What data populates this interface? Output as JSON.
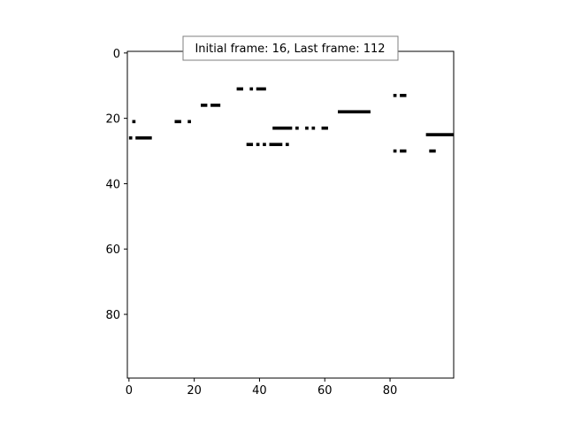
{
  "chart_data": {
    "type": "scatter",
    "title": "",
    "xlabel": "",
    "ylabel": "",
    "xlim": [
      0,
      100
    ],
    "ylim": [
      100,
      0
    ],
    "y_inverted": true,
    "x_ticks": [
      0,
      20,
      40,
      60,
      80
    ],
    "y_ticks": [
      0,
      20,
      40,
      60,
      80
    ],
    "grid": false,
    "annotation": "Initial frame: 16, Last frame: 112",
    "annotation_placement": "top-center",
    "mark_color": "#000000",
    "segments": [
      {
        "y": 11,
        "x": [
          33,
          35
        ]
      },
      {
        "y": 11,
        "x": [
          37,
          38
        ]
      },
      {
        "y": 11,
        "x": [
          39,
          42
        ]
      },
      {
        "y": 13,
        "x": [
          81,
          82
        ]
      },
      {
        "y": 13,
        "x": [
          83,
          85
        ]
      },
      {
        "y": 16,
        "x": [
          22,
          24
        ]
      },
      {
        "y": 16,
        "x": [
          25,
          28
        ]
      },
      {
        "y": 18,
        "x": [
          64,
          74
        ]
      },
      {
        "y": 21,
        "x": [
          1,
          2
        ]
      },
      {
        "y": 21,
        "x": [
          14,
          16
        ]
      },
      {
        "y": 21,
        "x": [
          18,
          19
        ]
      },
      {
        "y": 23,
        "x": [
          44,
          50
        ]
      },
      {
        "y": 23,
        "x": [
          51,
          52
        ]
      },
      {
        "y": 23,
        "x": [
          54,
          55
        ]
      },
      {
        "y": 23,
        "x": [
          56,
          57
        ]
      },
      {
        "y": 23,
        "x": [
          59,
          61
        ]
      },
      {
        "y": 25,
        "x": [
          91,
          100
        ]
      },
      {
        "y": 26,
        "x": [
          0,
          1
        ]
      },
      {
        "y": 26,
        "x": [
          2,
          7
        ]
      },
      {
        "y": 28,
        "x": [
          36,
          38
        ]
      },
      {
        "y": 28,
        "x": [
          39,
          40
        ]
      },
      {
        "y": 28,
        "x": [
          41,
          42
        ]
      },
      {
        "y": 28,
        "x": [
          43,
          47
        ]
      },
      {
        "y": 28,
        "x": [
          48,
          49
        ]
      },
      {
        "y": 30,
        "x": [
          81,
          82
        ]
      },
      {
        "y": 30,
        "x": [
          83,
          85
        ]
      },
      {
        "y": 30,
        "x": [
          92,
          94
        ]
      }
    ]
  }
}
